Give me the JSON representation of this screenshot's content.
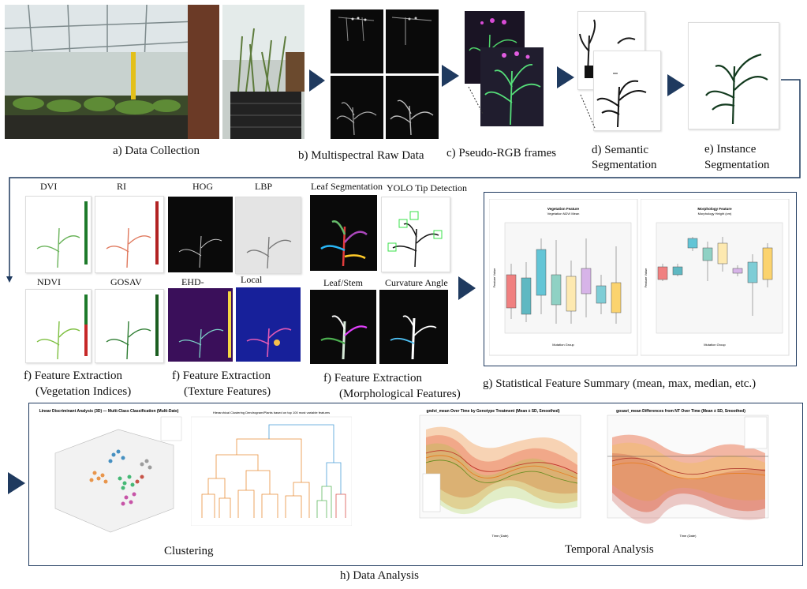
{
  "captions": {
    "a": "a) Data Collection",
    "b": "b) Multispectral Raw Data",
    "c": "c) Pseudo-RGB frames",
    "d_line1": "d) Semantic",
    "d_line2": "Segmentation",
    "e_line1": "e) Instance",
    "e_line2": "Segmentation",
    "f1_line1": "f) Feature Extraction",
    "f1_line2": "(Vegetation Indices)",
    "f2_line1": "f) Feature Extraction",
    "f2_line2": "(Texture Features)",
    "f3_line1": "f) Feature Extraction",
    "f3_line2": "(Morphological Features)",
    "g": "g) Statistical Feature Summary (mean, max, median, etc.)",
    "h": "h) Data Analysis",
    "clustering": "Clustering",
    "temporal": "Temporal Analysis"
  },
  "feature_labels": {
    "dvi": "DVI",
    "ri": "RI",
    "ndvi": "NDVI",
    "gosav": "GOSAV",
    "hog": "HOG",
    "lbp": "LBP",
    "ehd": "EHD-",
    "local": "Local",
    "leaf_seg": "Leaf Segmentation",
    "yolo": "YOLO Tip Detection",
    "leaf_stem": "Leaf/Stem",
    "curvature": "Curvature Angle"
  },
  "stat_plots": {
    "left_title": "Vegetation Feature",
    "left_subtitle": "Vegetation NDVI Mean",
    "right_title": "Morphology Feature",
    "right_subtitle": "Morphology Height (cm)",
    "ylabel": "Feature Value",
    "xlabel": "Mutation Group"
  },
  "analysis_plots": {
    "lda_title": "Linear Discriminant Analysis (3D) — Multi-Class Classification (Multi-Date)",
    "dendro_title": "Hierarchical Clustering Dendrogram/Plants based on top 100 most variable features",
    "temporal1_title": "gndvi_mean Over Time by Genotype Treatment (Mean ± SD, Smoothed)",
    "temporal2_title": "gosavi_mean Differences from NT Over Time (Mean ± SD, Smoothed)",
    "time_xlabel": "Time (Date)"
  },
  "colors": {
    "arrow": "#1f3a5f",
    "frame": "#1f3a5f"
  }
}
